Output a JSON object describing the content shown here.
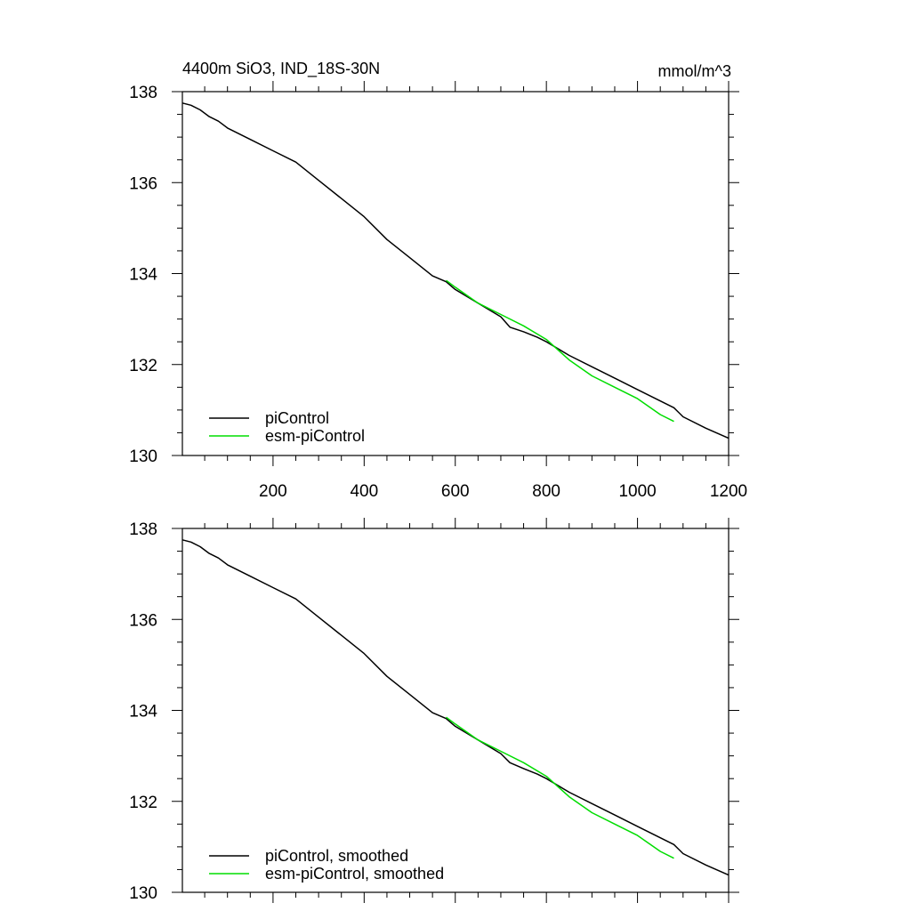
{
  "chart_data": [
    {
      "type": "line",
      "title": "4400m SiO3, IND_18S-30N",
      "units": "mmol/m^3",
      "xlim": [
        1,
        1200
      ],
      "ylim": [
        130,
        138
      ],
      "x_ticks": [
        200,
        400,
        600,
        800,
        1000,
        1200
      ],
      "y_ticks": [
        130,
        132,
        134,
        136,
        138
      ],
      "legend_position": "bottom-left",
      "series": [
        {
          "name": "piControl",
          "color": "#000000",
          "x": [
            1,
            20,
            40,
            60,
            80,
            100,
            150,
            200,
            250,
            300,
            350,
            400,
            450,
            500,
            550,
            580,
            600,
            650,
            700,
            720,
            750,
            780,
            800,
            850,
            900,
            950,
            1000,
            1050,
            1080,
            1100,
            1150,
            1200
          ],
          "y": [
            137.75,
            137.7,
            137.6,
            137.45,
            137.35,
            137.2,
            136.95,
            136.7,
            136.45,
            136.05,
            135.65,
            135.25,
            134.75,
            134.35,
            133.95,
            133.82,
            133.65,
            133.35,
            133.05,
            132.82,
            132.72,
            132.6,
            132.5,
            132.2,
            131.95,
            131.7,
            131.45,
            131.2,
            131.05,
            130.85,
            130.6,
            130.38
          ]
        },
        {
          "name": "esm-piControl",
          "color": "#00dd00",
          "x": [
            580,
            600,
            650,
            700,
            750,
            800,
            850,
            900,
            950,
            1000,
            1050,
            1080
          ],
          "y": [
            133.85,
            133.7,
            133.35,
            133.1,
            132.85,
            132.55,
            132.1,
            131.75,
            131.5,
            131.25,
            130.9,
            130.75
          ]
        }
      ]
    },
    {
      "type": "line",
      "xlim": [
        1,
        1200
      ],
      "ylim": [
        130,
        138
      ],
      "y_ticks": [
        130,
        132,
        134,
        136,
        138
      ],
      "legend_position": "bottom-left",
      "series": [
        {
          "name": "piControl, smoothed",
          "color": "#000000",
          "x": [
            1,
            20,
            40,
            60,
            80,
            100,
            150,
            200,
            250,
            300,
            350,
            400,
            450,
            500,
            550,
            580,
            600,
            650,
            700,
            720,
            750,
            780,
            800,
            850,
            900,
            950,
            1000,
            1050,
            1080,
            1100,
            1150,
            1200
          ],
          "y": [
            137.75,
            137.7,
            137.6,
            137.45,
            137.35,
            137.2,
            136.95,
            136.7,
            136.45,
            136.05,
            135.65,
            135.25,
            134.75,
            134.35,
            133.95,
            133.82,
            133.65,
            133.35,
            133.05,
            132.85,
            132.72,
            132.6,
            132.5,
            132.2,
            131.95,
            131.7,
            131.45,
            131.2,
            131.05,
            130.85,
            130.6,
            130.38
          ]
        },
        {
          "name": "esm-piControl, smoothed",
          "color": "#00dd00",
          "x": [
            580,
            600,
            650,
            700,
            750,
            800,
            850,
            900,
            950,
            1000,
            1050,
            1080
          ],
          "y": [
            133.85,
            133.7,
            133.35,
            133.1,
            132.85,
            132.55,
            132.1,
            131.75,
            131.5,
            131.25,
            130.9,
            130.75
          ]
        }
      ]
    }
  ]
}
